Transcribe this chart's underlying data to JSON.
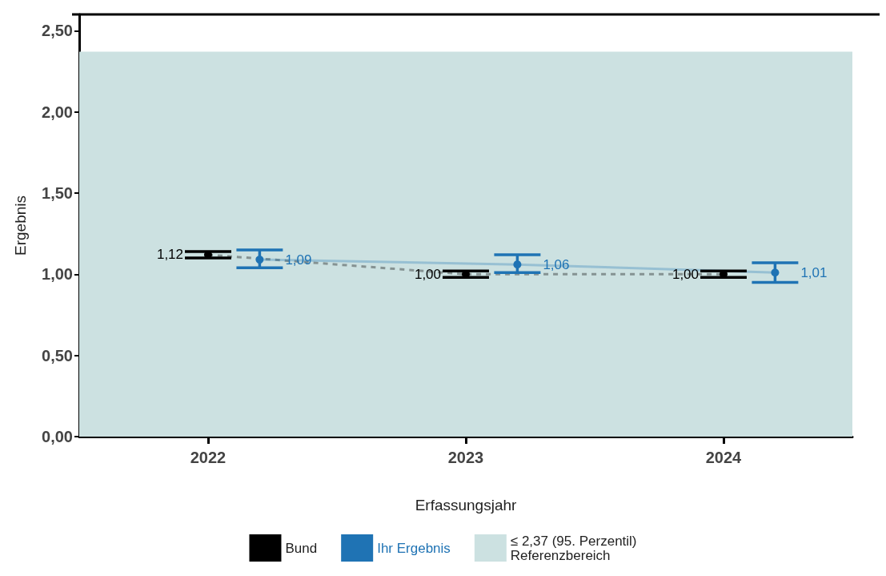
{
  "chart_data": {
    "type": "line",
    "xlabel": "Erfassungsjahr",
    "ylabel": "Ergebnis",
    "categories": [
      "2022",
      "2023",
      "2024"
    ],
    "series": [
      {
        "name": "Bund",
        "color": "#000000",
        "line_style": "dashed",
        "values": [
          1.12,
          1.0,
          1.0
        ],
        "errors": [
          [
            1.1,
            1.14
          ],
          [
            0.98,
            1.02
          ],
          [
            0.98,
            1.02
          ]
        ],
        "value_labels": [
          "1,12",
          "1,00",
          "1,00"
        ]
      },
      {
        "name": "Ihr Ergebnis",
        "color": "#1f73b4",
        "line_style": "solid",
        "values": [
          1.09,
          1.06,
          1.01
        ],
        "errors": [
          [
            1.04,
            1.15
          ],
          [
            1.01,
            1.12
          ],
          [
            0.95,
            1.07
          ]
        ],
        "value_labels": [
          "1,09",
          "1,06",
          "1,01"
        ]
      }
    ],
    "ylim": [
      0,
      2.6
    ],
    "yticks": [
      {
        "value": 0,
        "label": "0,00"
      },
      {
        "value": 0.5,
        "label": "0,50"
      },
      {
        "value": 1,
        "label": "1,00"
      },
      {
        "value": 1.5,
        "label": "1,50"
      },
      {
        "value": 2,
        "label": "2,00"
      },
      {
        "value": 2.5,
        "label": "2,50"
      }
    ],
    "grid": false,
    "legend": "bottom",
    "marker": "circle",
    "bands": [
      {
        "axis": "y",
        "from": 0,
        "to": 2.37,
        "label": "≤ 2,37 (95. Perzentil)\nReferenzbereich",
        "color": "#cce1e1"
      }
    ]
  }
}
